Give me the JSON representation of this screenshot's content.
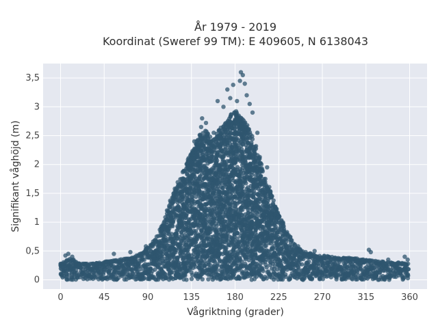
{
  "chart_data": {
    "type": "scatter",
    "title": [
      "År 1979 - 2019",
      "Koordinat (Sweref 99 TM): E 409605, N 6138043"
    ],
    "xlabel": "Vågriktning (grader)",
    "ylabel": "Signifikant våghöjd (m)",
    "xlim": [
      -18,
      378
    ],
    "ylim": [
      -0.16,
      3.75
    ],
    "xticks": [
      {
        "value": 0,
        "label": "0"
      },
      {
        "value": 45,
        "label": "45"
      },
      {
        "value": 90,
        "label": "90"
      },
      {
        "value": 135,
        "label": "135"
      },
      {
        "value": 180,
        "label": "180"
      },
      {
        "value": 225,
        "label": "225"
      },
      {
        "value": 270,
        "label": "270"
      },
      {
        "value": 315,
        "label": "315"
      },
      {
        "value": 360,
        "label": "360"
      }
    ],
    "yticks": [
      {
        "value": 0,
        "label": "0"
      },
      {
        "value": 0.5,
        "label": "0,5"
      },
      {
        "value": 1,
        "label": "1"
      },
      {
        "value": 1.5,
        "label": "1,5"
      },
      {
        "value": 2,
        "label": "2"
      },
      {
        "value": 2.5,
        "label": "2,5"
      },
      {
        "value": 3,
        "label": "3"
      },
      {
        "value": 3.5,
        "label": "3,5"
      }
    ],
    "grid": true,
    "marker_color": "#2f566f",
    "plot_background": "#e5e8f0",
    "envelope": [
      [
        0,
        0.28
      ],
      [
        10,
        0.38
      ],
      [
        20,
        0.28
      ],
      [
        30,
        0.28
      ],
      [
        40,
        0.3
      ],
      [
        45,
        0.32
      ],
      [
        55,
        0.34
      ],
      [
        65,
        0.36
      ],
      [
        75,
        0.4
      ],
      [
        85,
        0.5
      ],
      [
        90,
        0.58
      ],
      [
        95,
        0.65
      ],
      [
        100,
        0.8
      ],
      [
        105,
        0.95
      ],
      [
        110,
        1.2
      ],
      [
        115,
        1.45
      ],
      [
        120,
        1.65
      ],
      [
        125,
        1.85
      ],
      [
        130,
        2.05
      ],
      [
        135,
        2.2
      ],
      [
        140,
        2.4
      ],
      [
        145,
        2.55
      ],
      [
        150,
        2.6
      ],
      [
        155,
        2.45
      ],
      [
        160,
        2.5
      ],
      [
        165,
        2.65
      ],
      [
        170,
        2.75
      ],
      [
        175,
        2.85
      ],
      [
        180,
        2.95
      ],
      [
        185,
        2.85
      ],
      [
        190,
        2.75
      ],
      [
        195,
        2.6
      ],
      [
        200,
        2.4
      ],
      [
        205,
        2.15
      ],
      [
        210,
        1.85
      ],
      [
        215,
        1.6
      ],
      [
        220,
        1.35
      ],
      [
        225,
        1.15
      ],
      [
        230,
        0.95
      ],
      [
        235,
        0.8
      ],
      [
        240,
        0.65
      ],
      [
        245,
        0.55
      ],
      [
        250,
        0.5
      ],
      [
        260,
        0.45
      ],
      [
        270,
        0.42
      ],
      [
        280,
        0.4
      ],
      [
        290,
        0.38
      ],
      [
        300,
        0.38
      ],
      [
        310,
        0.36
      ],
      [
        320,
        0.34
      ],
      [
        330,
        0.32
      ],
      [
        340,
        0.3
      ],
      [
        350,
        0.3
      ],
      [
        360,
        0.28
      ]
    ],
    "outliers": [
      [
        5,
        0.42
      ],
      [
        8,
        0.45
      ],
      [
        12,
        0.4
      ],
      [
        55,
        0.45
      ],
      [
        72,
        0.48
      ],
      [
        88,
        0.58
      ],
      [
        104,
        0.92
      ],
      [
        117,
        1.5
      ],
      [
        125,
        1.75
      ],
      [
        138,
        2.4
      ],
      [
        145,
        2.65
      ],
      [
        146,
        2.8
      ],
      [
        150,
        2.72
      ],
      [
        158,
        2.55
      ],
      [
        162,
        3.1
      ],
      [
        168,
        3.0
      ],
      [
        172,
        3.3
      ],
      [
        175,
        3.15
      ],
      [
        178,
        3.38
      ],
      [
        182,
        3.1
      ],
      [
        185,
        3.45
      ],
      [
        186,
        3.6
      ],
      [
        188,
        3.55
      ],
      [
        190,
        3.4
      ],
      [
        192,
        3.2
      ],
      [
        195,
        3.05
      ],
      [
        198,
        2.9
      ],
      [
        203,
        2.55
      ],
      [
        213,
        1.95
      ],
      [
        245,
        0.58
      ],
      [
        262,
        0.5
      ],
      [
        318,
        0.52
      ],
      [
        320,
        0.48
      ],
      [
        338,
        0.35
      ],
      [
        355,
        0.4
      ],
      [
        358,
        0.35
      ]
    ]
  }
}
